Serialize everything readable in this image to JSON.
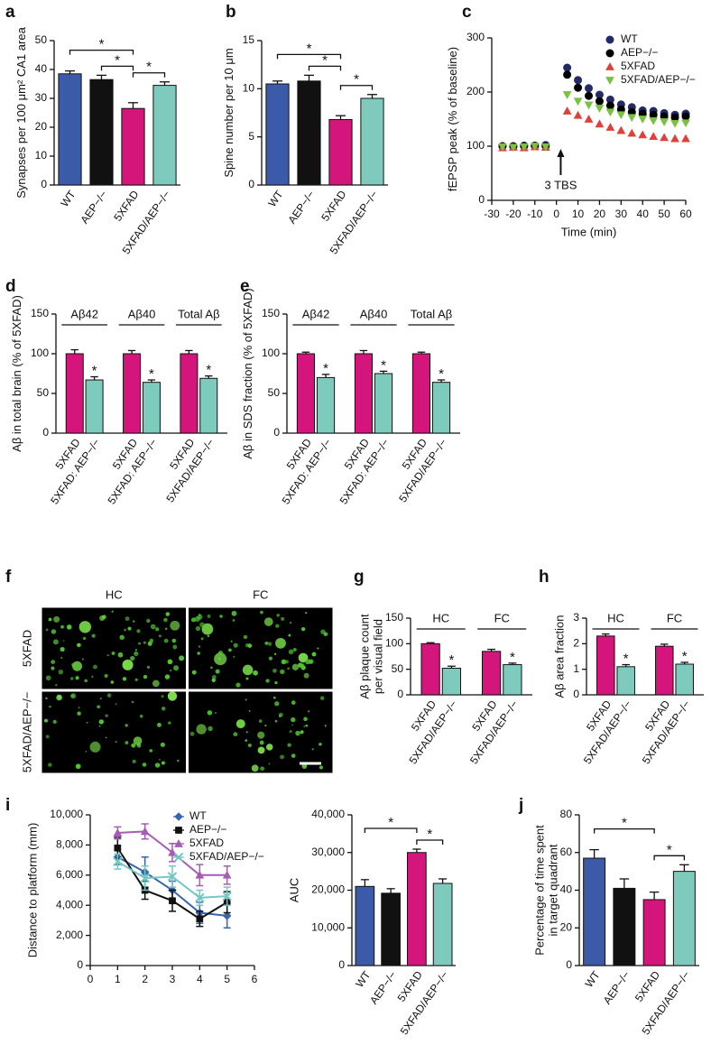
{
  "chart_data": [
    {
      "type": "bar",
      "label": "a",
      "ylabel": "Synapses per 100 μm² CA1 area",
      "categories": [
        "WT",
        "AEP−/−",
        "5XFAD",
        "5XFAD/AEP−/−"
      ],
      "values": [
        38.5,
        36.5,
        26.5,
        34.5
      ],
      "errors": [
        1,
        1.5,
        2,
        1.2
      ],
      "colors": [
        "#3b5ba9",
        "#111111",
        "#d4157c",
        "#7ecbbd"
      ],
      "ylim": [
        0,
        50
      ],
      "yticks": [
        0,
        10,
        20,
        30,
        40,
        50
      ],
      "brackets": [
        {
          "between": [
            0,
            2
          ],
          "text": "*"
        },
        {
          "between": [
            1,
            2
          ],
          "text": "*"
        },
        {
          "between": [
            2,
            3
          ],
          "text": "*"
        }
      ]
    },
    {
      "type": "bar",
      "label": "b",
      "ylabel": "Spine number per 10 μm",
      "categories": [
        "WT",
        "AEP−/−",
        "5XFAD",
        "5XFAD/AEP−/−"
      ],
      "values": [
        10.5,
        10.8,
        6.8,
        9.0
      ],
      "errors": [
        0.3,
        0.6,
        0.4,
        0.4
      ],
      "colors": [
        "#3b5ba9",
        "#111111",
        "#d4157c",
        "#7ecbbd"
      ],
      "ylim": [
        0,
        15
      ],
      "yticks": [
        0,
        5,
        10,
        15
      ],
      "brackets": [
        {
          "between": [
            0,
            2
          ],
          "text": "*"
        },
        {
          "between": [
            1,
            2
          ],
          "text": "*"
        },
        {
          "between": [
            2,
            3
          ],
          "text": "*"
        }
      ]
    },
    {
      "type": "scatter",
      "label": "c",
      "ylabel": "fEPSP peak (% of baseline)",
      "xlabel": "Time (min)",
      "x": [
        -25,
        -20,
        -15,
        -10,
        -5,
        5,
        10,
        15,
        20,
        25,
        30,
        35,
        40,
        45,
        50,
        55,
        60
      ],
      "xlim": [
        -30,
        60
      ],
      "xticks": [
        -30,
        -20,
        -10,
        0,
        10,
        20,
        30,
        40,
        50,
        60
      ],
      "ylim": [
        0,
        300
      ],
      "yticks": [
        0,
        100,
        200,
        300
      ],
      "legend": "upper right",
      "annotation": {
        "text": "3 TBS",
        "x": 2
      },
      "series": [
        {
          "name": "WT",
          "color": "#232a66",
          "marker": "circle",
          "values": [
            100,
            99,
            101,
            100,
            102,
            245,
            222,
            207,
            195,
            186,
            177,
            172,
            166,
            165,
            161,
            158,
            160
          ]
        },
        {
          "name": "AEP−/−",
          "color": "#000000",
          "marker": "circle",
          "values": [
            100,
            100,
            100,
            101,
            100,
            232,
            208,
            193,
            183,
            175,
            168,
            163,
            160,
            158,
            155,
            153,
            155
          ]
        },
        {
          "name": "5XFAD",
          "color": "#e0403a",
          "marker": "triangle-up",
          "values": [
            97,
            98,
            97,
            99,
            98,
            165,
            157,
            150,
            141,
            135,
            129,
            124,
            121,
            118,
            116,
            114,
            114
          ]
        },
        {
          "name": "5XFAD/AEP−/−",
          "color": "#7ac043",
          "marker": "triangle-down",
          "values": [
            99,
            98,
            99,
            100,
            99,
            195,
            183,
            176,
            170,
            163,
            158,
            153,
            150,
            147,
            145,
            142,
            143
          ]
        }
      ]
    },
    {
      "type": "bar",
      "label": "d",
      "ylabel": "Aβ in total brain (% of 5XFAD)",
      "groups": [
        "Aβ42",
        "Aβ40",
        "Total Aβ"
      ],
      "categories": [
        "5XFAD",
        "5XFAD: AEP−/−",
        "5XFAD",
        "5XFAD: AEP−/−",
        "5XFAD",
        "5XFAD/AEP−/−"
      ],
      "values": [
        100,
        67,
        100,
        64,
        100,
        69
      ],
      "errors": [
        5,
        4,
        4,
        3,
        4,
        3
      ],
      "colors": [
        "#d4157c",
        "#7ecbbd",
        "#d4157c",
        "#7ecbbd",
        "#d4157c",
        "#7ecbbd"
      ],
      "annotations": [
        null,
        "*",
        null,
        "*",
        null,
        "*"
      ],
      "ylim": [
        0,
        150
      ],
      "yticks": [
        0,
        50,
        100,
        150
      ]
    },
    {
      "type": "bar",
      "label": "e",
      "ylabel": "Aβ in SDS fraction (% of 5XFAD)",
      "groups": [
        "Aβ42",
        "Aβ40",
        "Total Aβ"
      ],
      "categories": [
        "5XFAD",
        "5XFAD: AEP−/−",
        "5XFAD",
        "5XFAD: AEP−/−",
        "5XFAD",
        "5XFAD/AEP−/−"
      ],
      "values": [
        100,
        70,
        100,
        75,
        100,
        64
      ],
      "errors": [
        2,
        4,
        4,
        3,
        2,
        3
      ],
      "colors": [
        "#d4157c",
        "#7ecbbd",
        "#d4157c",
        "#7ecbbd",
        "#d4157c",
        "#7ecbbd"
      ],
      "annotations": [
        null,
        "*",
        null,
        "*",
        null,
        "*"
      ],
      "ylim": [
        0,
        150
      ],
      "yticks": [
        0,
        50,
        100,
        150
      ]
    },
    {
      "type": "image",
      "label": "f",
      "columns": [
        "HC",
        "FC"
      ],
      "rows": [
        "5XFAD",
        "5XFAD/AEP−/−"
      ]
    },
    {
      "type": "bar",
      "label": "g",
      "ylabel": [
        "Aβ plaque count",
        "per visual field"
      ],
      "groups": [
        "HC",
        "FC"
      ],
      "categories": [
        "5XFAD",
        "5XFAD/AEP−/−",
        "5XFAD",
        "5XFAD/AEP−/−"
      ],
      "values": [
        100,
        52,
        85,
        59
      ],
      "errors": [
        2,
        4,
        4,
        3
      ],
      "colors": [
        "#d4157c",
        "#7ecbbd",
        "#d4157c",
        "#7ecbbd"
      ],
      "annotations": [
        null,
        "*",
        null,
        "*"
      ],
      "ylim": [
        0,
        150
      ],
      "yticks": [
        0,
        50,
        100,
        150
      ]
    },
    {
      "type": "bar",
      "label": "h",
      "ylabel": "Aβ area fraction",
      "groups": [
        "HC",
        "FC"
      ],
      "categories": [
        "5XFAD",
        "5XFAD/AEP−/−",
        "5XFAD",
        "5XFAD/AEP−/−"
      ],
      "values": [
        2.3,
        1.1,
        1.9,
        1.2
      ],
      "errors": [
        0.08,
        0.08,
        0.08,
        0.07
      ],
      "colors": [
        "#d4157c",
        "#7ecbbd",
        "#d4157c",
        "#7ecbbd"
      ],
      "annotations": [
        null,
        "*",
        null,
        "*"
      ],
      "ylim": [
        0,
        3
      ],
      "yticks": [
        0,
        1,
        2,
        3
      ]
    },
    {
      "type": "line",
      "label": "i",
      "ylabel": "Distance to platform (mm)",
      "x": [
        1,
        2,
        3,
        4,
        5
      ],
      "xlim": [
        0,
        6
      ],
      "xticks": [
        0,
        1,
        2,
        3,
        4,
        5,
        6
      ],
      "ylim": [
        0,
        10000
      ],
      "yticks": [
        0,
        {
          "value": 2000,
          "label": "2,000"
        },
        {
          "value": 4000,
          "label": "4,000"
        },
        {
          "value": 6000,
          "label": "6,000"
        },
        {
          "value": 8000,
          "label": "8,000"
        },
        {
          "value": 10000,
          "label": "10,000"
        }
      ],
      "legend": "upper right",
      "series": [
        {
          "name": "WT",
          "color": "#3a64b0",
          "marker": "diamond",
          "values": [
            7200,
            6200,
            5000,
            3500,
            3300
          ],
          "errors": [
            500,
            1000,
            600,
            700,
            800
          ]
        },
        {
          "name": "AEP−/−",
          "color": "#111111",
          "marker": "square",
          "values": [
            7800,
            5000,
            4300,
            3100,
            4200
          ],
          "errors": [
            700,
            600,
            700,
            500,
            700
          ]
        },
        {
          "name": "5XFAD",
          "color": "#a65bb5",
          "marker": "triangle-up",
          "values": [
            8800,
            8900,
            7500,
            6000,
            6000
          ],
          "errors": [
            400,
            500,
            600,
            700,
            600
          ]
        },
        {
          "name": "5XFAD/AEP−/−",
          "color": "#74c8c4",
          "marker": "x",
          "values": [
            6900,
            5800,
            5900,
            4500,
            4600
          ],
          "errors": [
            500,
            800,
            700,
            500,
            600
          ]
        }
      ]
    },
    {
      "type": "bar",
      "ylabel": "AUC",
      "categories": [
        "WT",
        "AEP−/−",
        "5XFAD",
        "5XFAD/AEP−/−"
      ],
      "values": [
        21000,
        19200,
        30000,
        21800
      ],
      "errors": [
        1800,
        1200,
        900,
        1200
      ],
      "colors": [
        "#3b5ba9",
        "#111111",
        "#d4157c",
        "#7ecbbd"
      ],
      "ylim": [
        0,
        40000
      ],
      "yticks": [
        0,
        {
          "value": 10000,
          "label": "10,000"
        },
        {
          "value": 20000,
          "label": "20,000"
        },
        {
          "value": 30000,
          "label": "30,000"
        },
        {
          "value": 40000,
          "label": "40,000"
        }
      ],
      "brackets": [
        {
          "between": [
            0,
            2
          ],
          "text": "*"
        },
        {
          "between": [
            2,
            3
          ],
          "text": "*"
        }
      ]
    },
    {
      "type": "bar",
      "label": "j",
      "ylabel": [
        "Percentage of time spent",
        "in target quadrant"
      ],
      "categories": [
        "WT",
        "AEP−/−",
        "5XFAD",
        "5XFAD/AEP−/−"
      ],
      "values": [
        57,
        41,
        35,
        50
      ],
      "errors": [
        4.5,
        5,
        4,
        3.5
      ],
      "colors": [
        "#3b5ba9",
        "#111111",
        "#d4157c",
        "#7ecbbd"
      ],
      "ylim": [
        0,
        80
      ],
      "yticks": [
        0,
        20,
        40,
        60,
        80
      ],
      "brackets": [
        {
          "between": [
            0,
            2
          ],
          "text": "*"
        },
        {
          "between": [
            2,
            3
          ],
          "text": "*"
        }
      ]
    }
  ]
}
